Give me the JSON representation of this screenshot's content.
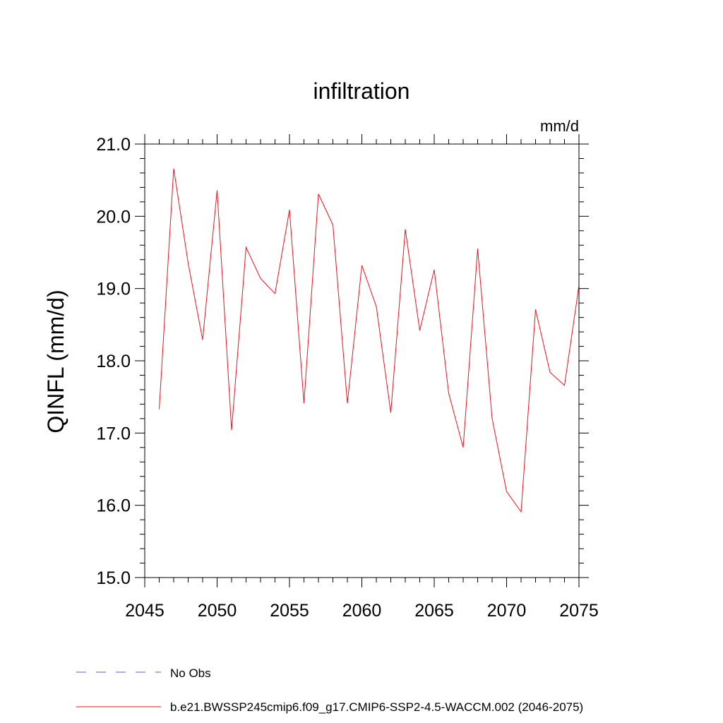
{
  "chart_data": {
    "type": "line",
    "title": "infiltration",
    "units_label": "mm/d",
    "ylabel": "QINFL  (mm/d)",
    "xlabel": "",
    "xlim": [
      2045,
      2075
    ],
    "ylim": [
      15.0,
      21.0
    ],
    "x_ticks": [
      2045,
      2050,
      2055,
      2060,
      2065,
      2070,
      2075
    ],
    "x_tick_labels": [
      "2045",
      "2050",
      "2055",
      "2060",
      "2065",
      "2070",
      "2075"
    ],
    "y_ticks": [
      15.0,
      16.0,
      17.0,
      18.0,
      19.0,
      20.0,
      21.0
    ],
    "y_tick_labels": [
      "15.0",
      "16.0",
      "17.0",
      "18.0",
      "19.0",
      "20.0",
      "21.0"
    ],
    "grid": false,
    "legend_position": "bottom",
    "series": [
      {
        "name": "b.e21.BWSSP245cmip6.f09_g17.CMIP6-SSP2-4.5-WACCM.002 (2046-2075)",
        "color": "#e8131f",
        "style": "solid",
        "x": [
          2046,
          2047,
          2048,
          2049,
          2050,
          2051,
          2052,
          2053,
          2054,
          2055,
          2056,
          2057,
          2058,
          2059,
          2060,
          2061,
          2062,
          2063,
          2064,
          2065,
          2066,
          2067,
          2068,
          2069,
          2070,
          2071,
          2072,
          2073,
          2074,
          2075
        ],
        "values": [
          17.33,
          20.66,
          19.35,
          18.29,
          20.36,
          17.04,
          19.57,
          19.14,
          18.93,
          20.09,
          17.41,
          20.31,
          19.88,
          17.41,
          19.32,
          18.75,
          17.28,
          19.82,
          18.42,
          19.26,
          17.55,
          16.8,
          19.55,
          17.2,
          16.19,
          15.91,
          18.71,
          17.84,
          17.66,
          19.04
        ]
      },
      {
        "name": "No Obs",
        "color": "#6a5acd",
        "style": "dashed",
        "x": [],
        "values": []
      }
    ]
  }
}
